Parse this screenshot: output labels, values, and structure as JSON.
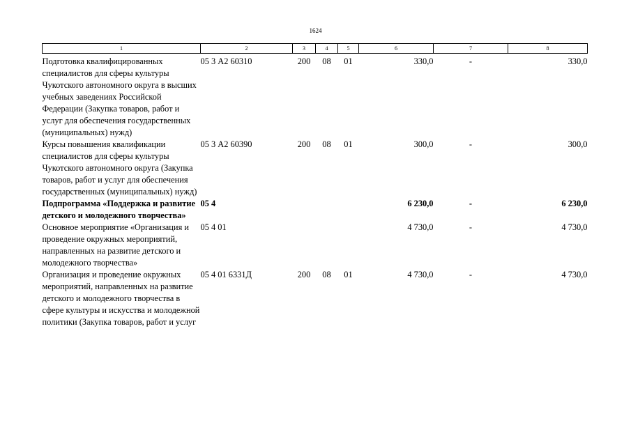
{
  "page_number": "1624",
  "header": [
    "1",
    "2",
    "3",
    "4",
    "5",
    "6",
    "7",
    "8"
  ],
  "rows": [
    {
      "name": "Подготовка квалифицированных специалистов для сферы культуры Чукотского автономного округа в высших учебных заведениях Российской Федерации (Закупка товаров, работ и услуг для обеспечения государственных (муниципальных) нужд)",
      "code": "05 3 А2 60310",
      "c3": "200",
      "c4": "08",
      "c5": "01",
      "c6": "330,0",
      "c7": "-",
      "c8": "330,0",
      "bold": false
    },
    {
      "name": "Курсы повышения квалификации специалистов для сферы культуры Чукотского автономного округа (Закупка товаров, работ и услуг для обеспечения государственных (муниципальных) нужд)",
      "code": "05 3 А2 60390",
      "c3": "200",
      "c4": "08",
      "c5": "01",
      "c6": "300,0",
      "c7": "-",
      "c8": "300,0",
      "bold": false
    },
    {
      "name": "Подпрограмма «Поддержка и развитие детского и молодежного творчества»",
      "code": "05 4",
      "c3": "",
      "c4": "",
      "c5": "",
      "c6": "6 230,0",
      "c7": "-",
      "c8": "6 230,0",
      "bold": true
    },
    {
      "name": "Основное мероприятие «Организация и проведение окружных мероприятий, направленных на развитие детского и молодежного творчества»",
      "code": "05 4 01",
      "c3": "",
      "c4": "",
      "c5": "",
      "c6": "4 730,0",
      "c7": "-",
      "c8": "4 730,0",
      "bold": false
    },
    {
      "name": "Организация и проведение окружных мероприятий, направленных на развитие детского и молодежного творчества в сфере культуры и искусства и молодежной политики (Закупка товаров, работ и услуг",
      "code": "05 4 01 6331Д",
      "c3": "200",
      "c4": "08",
      "c5": "01",
      "c6": "4 730,0",
      "c7": "-",
      "c8": "4 730,0",
      "bold": false
    }
  ]
}
